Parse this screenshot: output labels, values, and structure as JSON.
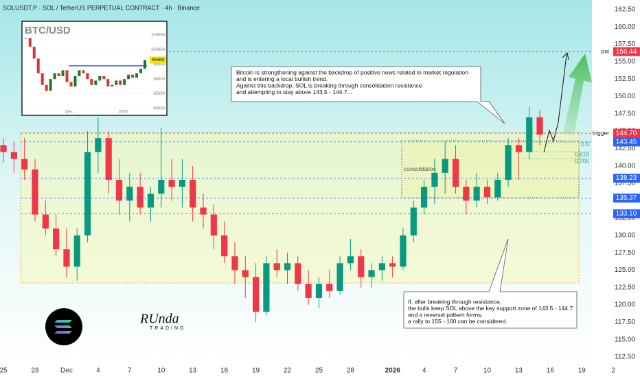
{
  "chart_data": {
    "type": "candlestick",
    "title": "SOLUSDT.P · SOL / TetherUS PERPETUAL CONTRACT · 4h · Binance",
    "x": [
      0,
      1,
      2,
      3,
      4,
      5,
      6,
      7,
      8,
      9,
      10,
      11,
      12,
      13,
      14,
      15,
      16,
      17,
      18,
      19,
      20,
      21,
      22,
      23,
      24,
      25,
      26,
      27,
      28,
      29,
      30,
      31,
      32,
      33,
      34,
      35,
      36,
      37,
      38,
      39,
      40,
      41,
      42,
      43,
      44,
      45,
      46,
      47,
      48,
      49,
      50,
      51
    ],
    "open": [
      143,
      142,
      141,
      139.5,
      133,
      131,
      128,
      125.5,
      130,
      142,
      144,
      138,
      135,
      137,
      134,
      136,
      138,
      137,
      138,
      134,
      133,
      130,
      127,
      125,
      124,
      119,
      126,
      125,
      126,
      123,
      121,
      123,
      122,
      126,
      127,
      124,
      125,
      126,
      125.5,
      130,
      134,
      137,
      139,
      141,
      137,
      135,
      137,
      135.5,
      138,
      143,
      142,
      147
    ],
    "high": [
      144,
      143.5,
      144,
      141,
      135,
      133,
      131,
      131,
      145,
      147,
      145,
      141,
      139,
      139,
      137,
      145.5,
      141,
      141,
      140,
      136,
      134.5,
      132,
      129,
      127,
      126,
      127,
      128,
      127.5,
      127,
      125,
      124,
      125,
      127,
      129.5,
      128,
      126,
      127,
      127,
      131,
      135,
      138,
      141,
      143.5,
      143,
      138,
      139,
      138,
      139,
      144,
      144,
      148.5,
      148
    ],
    "low": [
      140.5,
      139,
      138,
      132,
      130,
      127,
      124,
      123.5,
      129,
      139,
      136,
      133,
      132,
      133,
      132,
      134,
      135,
      134,
      132,
      131,
      128,
      126,
      123,
      121,
      117.5,
      118.5,
      124,
      123,
      122,
      120,
      119.5,
      121,
      121.5,
      125,
      122.5,
      122.5,
      123.5,
      124,
      125,
      129,
      133,
      134.5,
      136,
      136,
      133,
      134,
      134.5,
      135,
      137,
      138,
      141,
      143
    ],
    "close": [
      142,
      141,
      139.5,
      133,
      131,
      128,
      125.5,
      130,
      142,
      144,
      138,
      135,
      137,
      134,
      136,
      138,
      137,
      138,
      134,
      133,
      130,
      127,
      125,
      124,
      119,
      126,
      125,
      126,
      123,
      121,
      123,
      122,
      126,
      127,
      124,
      125,
      126,
      125.5,
      130,
      134,
      137,
      139,
      141,
      137,
      135,
      137,
      135.5,
      138,
      143,
      142,
      147,
      144.5
    ],
    "up_color": "#089981",
    "down_color": "#f23645",
    "xlim": [
      -0.33,
      55.96
    ],
    "xticks": [
      {
        "value": 0,
        "label": "25"
      },
      {
        "value": 3,
        "label": "28"
      },
      {
        "value": 6,
        "label": "Dec"
      },
      {
        "value": 9,
        "label": "4"
      },
      {
        "value": 12,
        "label": "7"
      },
      {
        "value": 15,
        "label": "10"
      },
      {
        "value": 18,
        "label": "13"
      },
      {
        "value": 21,
        "label": "16"
      },
      {
        "value": 24,
        "label": "19"
      },
      {
        "value": 27,
        "label": "22"
      },
      {
        "value": 30,
        "label": "25"
      },
      {
        "value": 33,
        "label": "28"
      },
      {
        "value": 37,
        "label": "2026"
      },
      {
        "value": 40,
        "label": "4"
      },
      {
        "value": 43,
        "label": "7"
      },
      {
        "value": 46,
        "label": "10"
      },
      {
        "value": 49,
        "label": "13"
      },
      {
        "value": 52,
        "label": "16"
      },
      {
        "value": 55,
        "label": "19"
      },
      {
        "value": 58,
        "label": "2"
      }
    ],
    "ylim": [
      111.71,
      163.88
    ],
    "yticks": [
      {
        "value": 112.5,
        "label": "112.50"
      },
      {
        "value": 115,
        "label": "115.00"
      },
      {
        "value": 117.5,
        "label": "117.50"
      },
      {
        "value": 120,
        "label": "120.00"
      },
      {
        "value": 122.5,
        "label": "122.50"
      },
      {
        "value": 125,
        "label": "125.00"
      },
      {
        "value": 127.5,
        "label": "127.50"
      },
      {
        "value": 130,
        "label": "130.00"
      },
      {
        "value": 132.5,
        "label": "132.50"
      },
      {
        "value": 135,
        "label": "135.00"
      },
      {
        "value": 137.5,
        "label": "137.50"
      },
      {
        "value": 140,
        "label": "140.00"
      },
      {
        "value": 142.5,
        "label": "142.50"
      },
      {
        "value": 145,
        "label": "145.00"
      },
      {
        "value": 147.5,
        "label": "147.50"
      },
      {
        "value": 150,
        "label": "150.00"
      },
      {
        "value": 152.5,
        "label": "152.50"
      },
      {
        "value": 155,
        "label": "155.00"
      },
      {
        "value": 157.5,
        "label": "157.50"
      },
      {
        "value": 160,
        "label": "160.00"
      },
      {
        "value": 162.5,
        "label": "162.50"
      }
    ],
    "levels": [
      {
        "name": "poi",
        "value": 156.44,
        "color": "#f23645"
      },
      {
        "name": "trigger",
        "value": 144.7,
        "label": "144.70",
        "color": "#f23645"
      },
      {
        "value": 143.45,
        "color": "#2962ff"
      },
      {
        "value": 138.23,
        "color": "#2962ff"
      },
      {
        "value": 135.37,
        "color": "#2962ff"
      },
      {
        "value": 133.1,
        "label": "133.10",
        "color": "#2962ff"
      }
    ],
    "fib_levels": [
      {
        "label": "0.5",
        "value": 143.43
      },
      {
        "label": "0.618",
        "value": 142.04
      },
      {
        "label": "0.705",
        "value": 141.05
      }
    ],
    "zone_label": "consolidation",
    "annotations": [
      {
        "lines": [
          "Bitcoin is strengthening against the backdrop of positive news related to market regulation",
          "and is entering a local bullish trend.",
          "Against this backdrop, SOL is breaking through consolidation resistance",
          "and attempting to stay above 143.5 - 144.7..."
        ]
      },
      {
        "lines": [
          "If, after breaking through resistance,",
          "the bulls keep SOL above the key support zone of 143.5 - 144.7",
          "and a reversal pattern forms,",
          "a rally to 155 - 160 can be considered."
        ]
      }
    ],
    "brand": [
      "RUnda",
      "TRADING"
    ],
    "inset": {
      "type": "line",
      "title": "BTC/USD",
      "values": [
        104000,
        101000,
        97000,
        92000,
        88000,
        86000,
        90000,
        92000,
        91000,
        93000,
        89000,
        87500,
        91000,
        93000,
        92000,
        90000,
        88000,
        89500,
        91000,
        90000,
        87500,
        88000,
        89500,
        88000,
        90000,
        91500,
        90500,
        92000,
        93500,
        96489
      ],
      "last_label": 96489,
      "level": 94500,
      "color": "#1f7a1f",
      "xlim": [
        -0.3,
        29.5
      ],
      "xticks": [
        {
          "value": 10.5,
          "label": "Dec"
        },
        {
          "value": 23.7,
          "label": "2026"
        }
      ],
      "ylim": [
        77664,
        109670
      ],
      "yticks": [
        80000,
        85000,
        90000,
        95000,
        100000,
        105000
      ]
    }
  }
}
